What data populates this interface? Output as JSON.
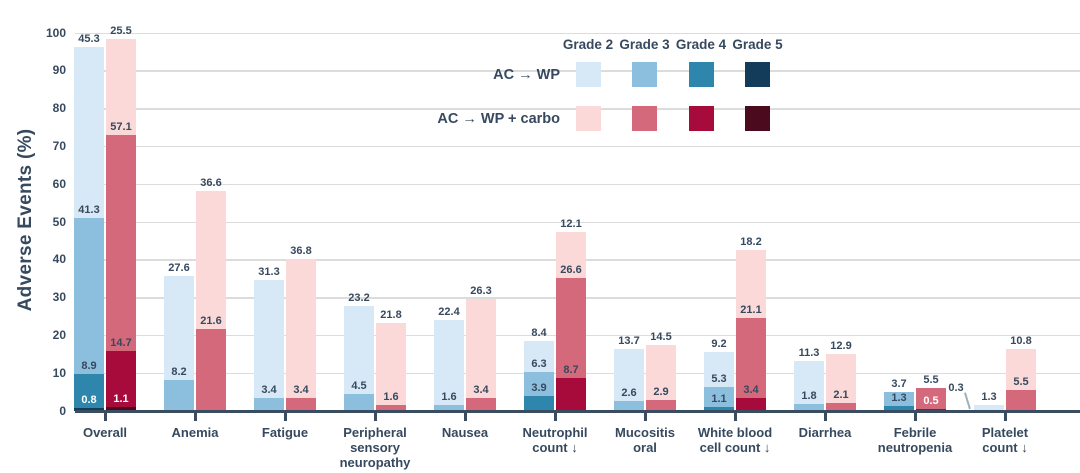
{
  "chart_data": {
    "type": "bar",
    "stacked": true,
    "title": "",
    "ylabel": "Adverse Events (%)",
    "xlabel": "",
    "ylim": [
      0,
      100
    ],
    "ytick_step": 10,
    "grid": "horizontal",
    "legend_position": "top-right",
    "grade_labels": [
      "Grade 2",
      "Grade 3",
      "Grade 4",
      "Grade 5"
    ],
    "grade_keys": [
      "g2",
      "g3",
      "g4",
      "g5"
    ],
    "series": [
      {
        "name": "AC → WP",
        "key": "wp",
        "colors": {
          "g2": "#d7e8f6",
          "g3": "#8cbedd",
          "g4": "#2f86ad",
          "g5": "#123c59"
        }
      },
      {
        "name": "AC → WP + carbo",
        "key": "carbo",
        "colors": {
          "g2": "#fbd9d9",
          "g3": "#d4697c",
          "g4": "#a70b3c",
          "g5": "#4c0a1f"
        }
      }
    ],
    "categories": [
      {
        "label": "Overall",
        "wp": {
          "g2": 45.3,
          "g3": 41.3,
          "g4": 8.9,
          "g5": 0.8
        },
        "carbo": {
          "g2": 25.5,
          "g3": 57.1,
          "g4": 14.7,
          "g5": 1.1
        },
        "white_labels": {
          "wp": [
            "g5"
          ],
          "carbo": [
            "g5"
          ]
        }
      },
      {
        "label": "Anemia",
        "wp": {
          "g2": 27.6,
          "g3": 8.2
        },
        "carbo": {
          "g2": 36.6,
          "g3": 21.6
        }
      },
      {
        "label": "Fatigue",
        "wp": {
          "g2": 31.3,
          "g3": 3.4
        },
        "carbo": {
          "g2": 36.8,
          "g3": 3.4
        }
      },
      {
        "label": "Peripheral\nsensory\nneuropathy",
        "wp": {
          "g2": 23.2,
          "g3": 4.5
        },
        "carbo": {
          "g2": 21.8,
          "g3": 1.6
        }
      },
      {
        "label": "Nausea",
        "wp": {
          "g2": 22.4,
          "g3": 1.6
        },
        "carbo": {
          "g2": 26.3,
          "g3": 3.4
        }
      },
      {
        "label": "Neutrophil\ncount ↓",
        "wp": {
          "g2": 8.4,
          "g3": 6.3,
          "g4": 3.9
        },
        "carbo": {
          "g2": 12.1,
          "g3": 26.6,
          "g4": 8.7
        }
      },
      {
        "label": "Mucositis\noral",
        "wp": {
          "g2": 13.7,
          "g3": 2.6
        },
        "carbo": {
          "g2": 14.5,
          "g3": 2.9
        }
      },
      {
        "label": "White blood\ncell count ↓",
        "wp": {
          "g2": 9.2,
          "g3": 5.3,
          "g4": 1.1
        },
        "carbo": {
          "g2": 18.2,
          "g3": 21.1,
          "g4": 3.4
        }
      },
      {
        "label": "Diarrhea",
        "wp": {
          "g2": 11.3,
          "g3": 1.8
        },
        "carbo": {
          "g2": 12.9,
          "g3": 2.1
        }
      },
      {
        "label": "Febrile\nneutropenia",
        "wp": {
          "g3": 3.7,
          "g4": 1.3
        },
        "carbo": {
          "g3": 5.5,
          "g4": 0.5
        },
        "white_labels": {
          "carbo": [
            "g4"
          ]
        }
      },
      {
        "label": "Platelet\ncount ↓",
        "wp": {
          "g2": 1.3,
          "g3": 0.3
        },
        "carbo": {
          "g2": 10.8,
          "g3": 5.5
        },
        "callout": {
          "side": "wp",
          "grade": "g3"
        }
      }
    ],
    "colors": {
      "text": "#36495e",
      "grid": "#dcdcdc",
      "axis": "#3a4c60",
      "white_label": "#ffffff",
      "callout_line": "#9fb0bd"
    }
  }
}
